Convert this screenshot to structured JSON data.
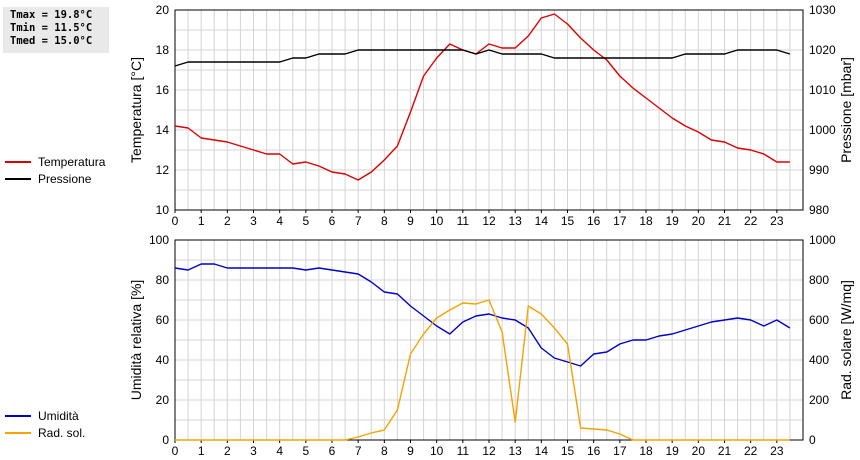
{
  "stats": {
    "tmax": "Tmax = 19.8°C",
    "tmin": "Tmin = 11.5°C",
    "tmed": "Tmed = 15.0°C"
  },
  "colors": {
    "temperature": "#dd0000",
    "pressure": "#000000",
    "humidity": "#0000cc",
    "solar": "#f5a300",
    "grid": "#d4d4d4"
  },
  "chart_data": [
    {
      "type": "line",
      "xlabel": "",
      "x_ticks": [
        "0",
        "1",
        "2",
        "3",
        "4",
        "5",
        "6",
        "7",
        "8",
        "9",
        "10",
        "11",
        "12",
        "13",
        "14",
        "15",
        "16",
        "17",
        "18",
        "19",
        "20",
        "21",
        "22",
        "23"
      ],
      "xlim": [
        0,
        24
      ],
      "grid": true,
      "legend_position": "left",
      "y_left": {
        "label": "Temperatura [°C]",
        "ylim": [
          10,
          20
        ],
        "ticks": [
          "10",
          "12",
          "14",
          "16",
          "18",
          "20"
        ]
      },
      "y_right": {
        "label": "Pressione [mbar]",
        "ylim": [
          980,
          1030
        ],
        "ticks": [
          "980",
          "990",
          "1000",
          "1010",
          "1020",
          "1030"
        ]
      },
      "series": [
        {
          "name": "Temperatura",
          "axis": "left",
          "x": [
            0,
            0.5,
            1,
            1.5,
            2,
            2.5,
            3,
            3.5,
            4,
            4.5,
            5,
            5.5,
            6,
            6.5,
            7,
            7.5,
            8,
            8.5,
            9,
            9.5,
            10,
            10.5,
            11,
            11.5,
            12,
            12.5,
            13,
            13.5,
            14,
            14.5,
            15,
            15.5,
            16,
            16.5,
            17,
            17.5,
            18,
            18.5,
            19,
            19.5,
            20,
            20.5,
            21,
            21.5,
            22,
            22.5,
            23,
            23.5
          ],
          "values": [
            14.2,
            14.1,
            13.6,
            13.5,
            13.4,
            13.2,
            13.0,
            12.8,
            12.8,
            12.3,
            12.4,
            12.2,
            11.9,
            11.8,
            11.5,
            11.9,
            12.5,
            13.2,
            14.9,
            16.7,
            17.6,
            18.3,
            18.0,
            17.8,
            18.3,
            18.1,
            18.1,
            18.7,
            19.6,
            19.8,
            19.3,
            18.6,
            18.0,
            17.5,
            16.7,
            16.1,
            15.6,
            15.1,
            14.6,
            14.2,
            13.9,
            13.5,
            13.4,
            13.1,
            13.0,
            12.8,
            12.4,
            12.4
          ]
        },
        {
          "name": "Pressione",
          "axis": "right",
          "x": [
            0,
            0.5,
            1,
            1.5,
            2,
            2.5,
            3,
            3.5,
            4,
            4.5,
            5,
            5.5,
            6,
            6.5,
            7,
            7.5,
            8,
            8.5,
            9,
            9.5,
            10,
            10.5,
            11,
            11.5,
            12,
            12.5,
            13,
            13.5,
            14,
            14.5,
            15,
            15.5,
            16,
            16.5,
            17,
            17.5,
            18,
            18.5,
            19,
            19.5,
            20,
            20.5,
            21,
            21.5,
            22,
            22.5,
            23,
            23.5
          ],
          "values": [
            1016,
            1017,
            1017,
            1017,
            1017,
            1017,
            1017,
            1017,
            1017,
            1018,
            1018,
            1019,
            1019,
            1019,
            1020,
            1020,
            1020,
            1020,
            1020,
            1020,
            1020,
            1020,
            1020,
            1019,
            1020,
            1019,
            1019,
            1019,
            1019,
            1018,
            1018,
            1018,
            1018,
            1018,
            1018,
            1018,
            1018,
            1018,
            1018,
            1019,
            1019,
            1019,
            1019,
            1020,
            1020,
            1020,
            1020,
            1019
          ]
        }
      ]
    },
    {
      "type": "line",
      "xlabel": "",
      "x_ticks": [
        "0",
        "1",
        "2",
        "3",
        "4",
        "5",
        "6",
        "7",
        "8",
        "9",
        "10",
        "11",
        "12",
        "13",
        "14",
        "15",
        "16",
        "17",
        "18",
        "19",
        "20",
        "21",
        "22",
        "23"
      ],
      "xlim": [
        0,
        24
      ],
      "grid": true,
      "legend_position": "left",
      "y_left": {
        "label": "Umidità relativa [%]",
        "ylim": [
          0,
          100
        ],
        "ticks": [
          "0",
          "20",
          "40",
          "60",
          "80",
          "100"
        ]
      },
      "y_right": {
        "label": "Rad. solare [W/mq]",
        "ylim": [
          0,
          1000
        ],
        "ticks": [
          "0",
          "200",
          "400",
          "600",
          "800",
          "1000"
        ]
      },
      "series": [
        {
          "name": "Umidità",
          "axis": "left",
          "x": [
            0,
            0.5,
            1,
            1.5,
            2,
            2.5,
            3,
            3.5,
            4,
            4.5,
            5,
            5.5,
            6,
            6.5,
            7,
            7.5,
            8,
            8.5,
            9,
            9.5,
            10,
            10.5,
            11,
            11.5,
            12,
            12.5,
            13,
            13.5,
            14,
            14.5,
            15,
            15.5,
            16,
            16.5,
            17,
            17.5,
            18,
            18.5,
            19,
            19.5,
            20,
            20.5,
            21,
            21.5,
            22,
            22.5,
            23,
            23.5
          ],
          "values": [
            86,
            85,
            88,
            88,
            86,
            86,
            86,
            86,
            86,
            86,
            85,
            86,
            85,
            84,
            83,
            79,
            74,
            73,
            67,
            62,
            57,
            53,
            59,
            62,
            63,
            61,
            60,
            56,
            46,
            41,
            39,
            37,
            43,
            44,
            48,
            50,
            50,
            52,
            53,
            55,
            57,
            59,
            60,
            61,
            60,
            57,
            60,
            56
          ]
        },
        {
          "name": "Rad. sol.",
          "axis": "right",
          "x": [
            0,
            1,
            2,
            3,
            4,
            5,
            6,
            6.5,
            7,
            7.5,
            8,
            8.5,
            9,
            9.5,
            10,
            10.5,
            11,
            11.5,
            12,
            12.5,
            13,
            13.5,
            14,
            14.5,
            15,
            15.5,
            16,
            16.5,
            17,
            17.5,
            18,
            19,
            20,
            21,
            22,
            23,
            23.5
          ],
          "values": [
            0,
            0,
            0,
            0,
            0,
            0,
            0,
            0,
            15,
            35,
            50,
            150,
            430,
            530,
            610,
            650,
            685,
            680,
            700,
            540,
            90,
            670,
            630,
            560,
            480,
            60,
            55,
            50,
            30,
            0,
            0,
            0,
            0,
            0,
            0,
            0,
            0
          ]
        }
      ]
    }
  ]
}
